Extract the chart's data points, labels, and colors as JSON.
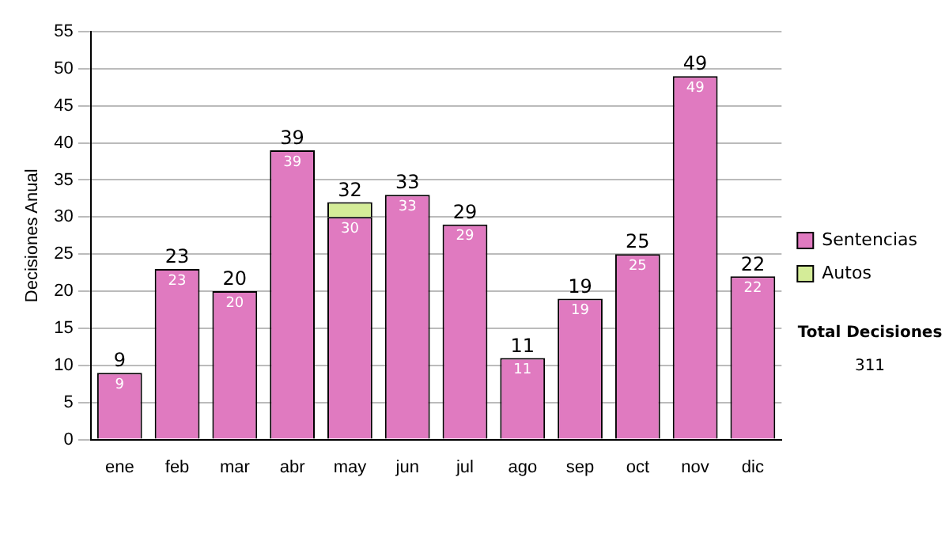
{
  "chart_data": {
    "type": "bar",
    "stacked": true,
    "ylabel": "Decisiones Anual",
    "categories": [
      "ene",
      "feb",
      "mar",
      "abr",
      "may",
      "jun",
      "jul",
      "ago",
      "sep",
      "oct",
      "nov",
      "dic"
    ],
    "series": [
      {
        "name": "Sentencias",
        "color": "#e07ac0",
        "values": [
          9,
          23,
          20,
          39,
          30,
          33,
          29,
          11,
          19,
          25,
          49,
          22
        ],
        "value_labels": [
          "9",
          "23",
          "20",
          "39",
          "30",
          "33",
          "29",
          "11",
          "19",
          "25",
          "49",
          "22"
        ]
      },
      {
        "name": "Autos",
        "color": "#d4ec98",
        "values": [
          0,
          0,
          0,
          0,
          2,
          0,
          0,
          0,
          0,
          0,
          0,
          0
        ]
      }
    ],
    "totals": [
      "9",
      "23",
      "20",
      "39",
      "32",
      "33",
      "29",
      "11",
      "19",
      "25",
      "49",
      "22"
    ],
    "ylim": [
      0,
      55
    ],
    "yticks": [
      0,
      5,
      10,
      15,
      20,
      25,
      30,
      35,
      40,
      45,
      50,
      55
    ],
    "grid": "y",
    "legend": "right",
    "annotations": [
      "Total Decisiones",
      "311"
    ]
  }
}
